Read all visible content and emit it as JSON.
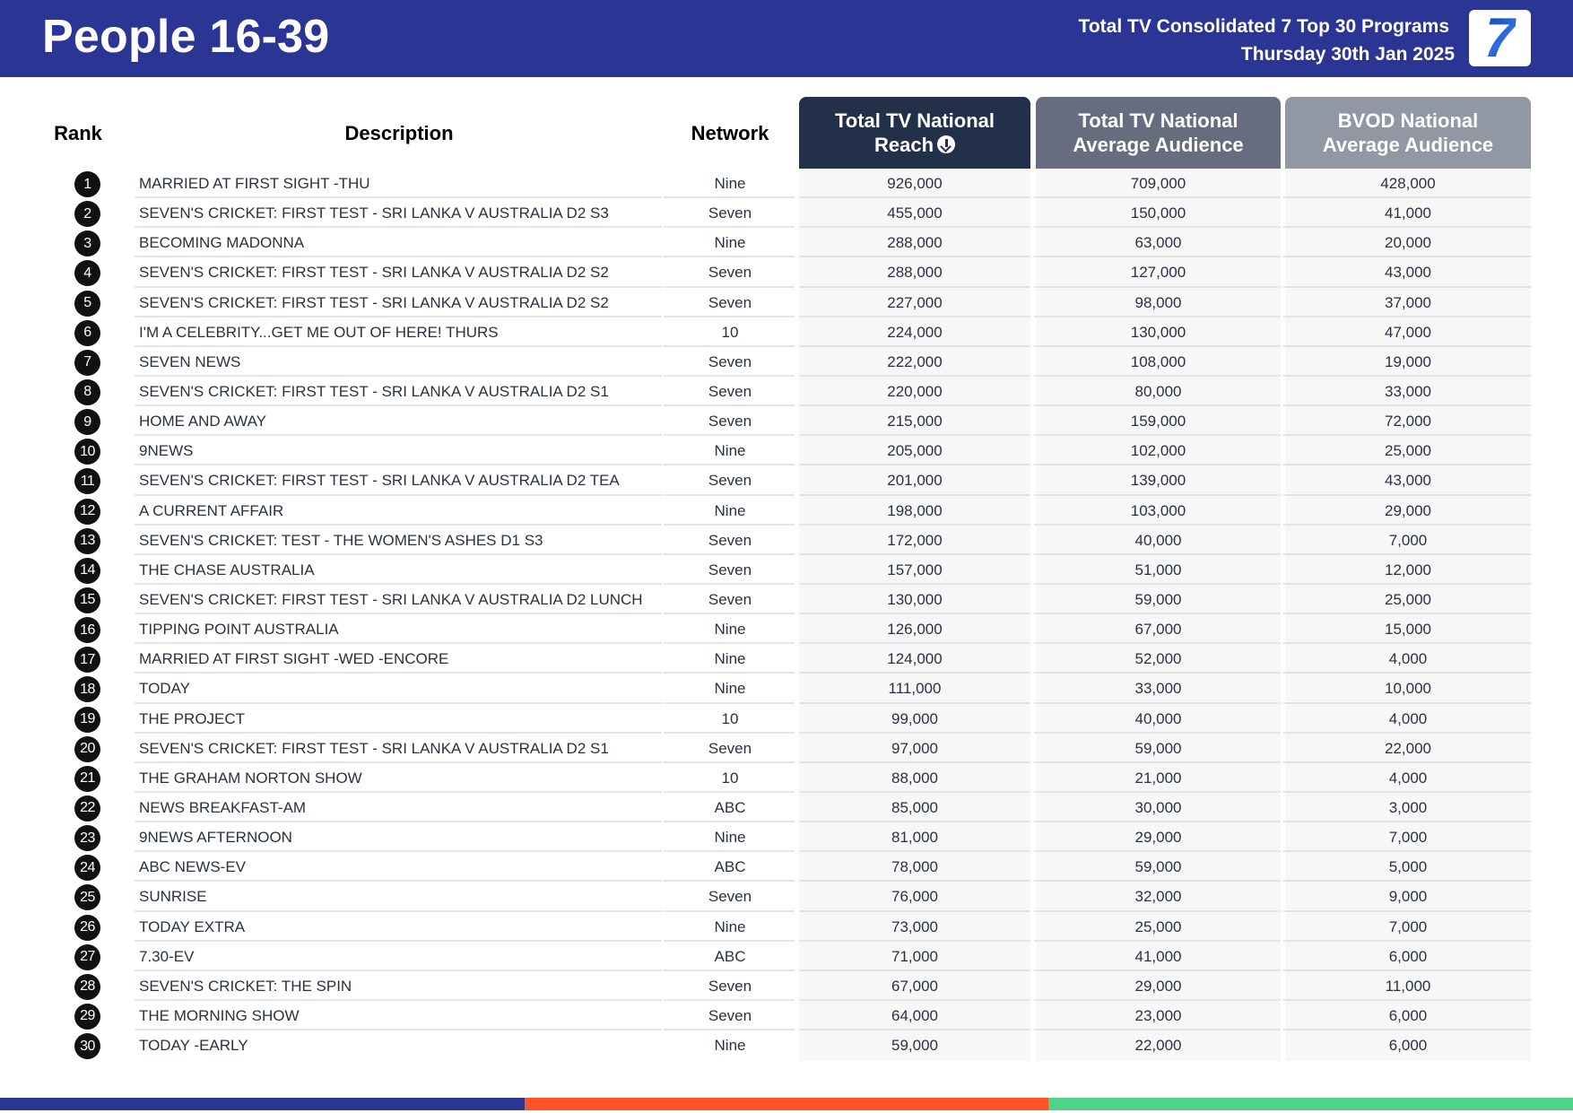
{
  "header": {
    "title": "People 16-39",
    "subtitle_line1": "Total TV Consolidated 7 Top 30 Programs",
    "subtitle_line2": "Thursday 30th Jan 2025",
    "logo_text": "7",
    "background_color": "#2b3593"
  },
  "table": {
    "columns": {
      "rank": "Rank",
      "description": "Description",
      "network": "Network",
      "reach_line1": "Total TV National",
      "reach_line2": "Reach",
      "avg_line1": "Total TV National",
      "avg_line2": "Average Audience",
      "bvod_line1": "BVOD National",
      "bvod_line2": "Average Audience"
    },
    "sort_icon": "arrow-down-circle-icon",
    "rows": [
      {
        "rank": "1",
        "description": "MARRIED AT FIRST SIGHT -THU",
        "network": "Nine",
        "reach": "926,000",
        "avg": "709,000",
        "bvod": "428,000"
      },
      {
        "rank": "2",
        "description": "SEVEN'S CRICKET: FIRST TEST - SRI LANKA V AUSTRALIA D2 S3",
        "network": "Seven",
        "reach": "455,000",
        "avg": "150,000",
        "bvod": "41,000"
      },
      {
        "rank": "3",
        "description": "BECOMING MADONNA",
        "network": "Nine",
        "reach": "288,000",
        "avg": "63,000",
        "bvod": "20,000"
      },
      {
        "rank": "4",
        "description": "SEVEN'S CRICKET: FIRST TEST - SRI LANKA V AUSTRALIA D2 S2",
        "network": "Seven",
        "reach": "288,000",
        "avg": "127,000",
        "bvod": "43,000"
      },
      {
        "rank": "5",
        "description": "SEVEN'S CRICKET: FIRST TEST - SRI LANKA V AUSTRALIA D2 S2",
        "network": "Seven",
        "reach": "227,000",
        "avg": "98,000",
        "bvod": "37,000"
      },
      {
        "rank": "6",
        "description": "I'M A CELEBRITY...GET ME OUT OF HERE! THURS",
        "network": "10",
        "reach": "224,000",
        "avg": "130,000",
        "bvod": "47,000"
      },
      {
        "rank": "7",
        "description": "SEVEN NEWS",
        "network": "Seven",
        "reach": "222,000",
        "avg": "108,000",
        "bvod": "19,000"
      },
      {
        "rank": "8",
        "description": "SEVEN'S CRICKET: FIRST TEST - SRI LANKA V AUSTRALIA D2 S1",
        "network": "Seven",
        "reach": "220,000",
        "avg": "80,000",
        "bvod": "33,000"
      },
      {
        "rank": "9",
        "description": "HOME AND AWAY",
        "network": "Seven",
        "reach": "215,000",
        "avg": "159,000",
        "bvod": "72,000"
      },
      {
        "rank": "10",
        "description": "9NEWS",
        "network": "Nine",
        "reach": "205,000",
        "avg": "102,000",
        "bvod": "25,000"
      },
      {
        "rank": "11",
        "description": "SEVEN'S CRICKET: FIRST TEST - SRI LANKA V AUSTRALIA D2 TEA",
        "network": "Seven",
        "reach": "201,000",
        "avg": "139,000",
        "bvod": "43,000"
      },
      {
        "rank": "12",
        "description": "A CURRENT AFFAIR",
        "network": "Nine",
        "reach": "198,000",
        "avg": "103,000",
        "bvod": "29,000"
      },
      {
        "rank": "13",
        "description": "SEVEN'S CRICKET: TEST - THE WOMEN'S ASHES D1 S3",
        "network": "Seven",
        "reach": "172,000",
        "avg": "40,000",
        "bvod": "7,000"
      },
      {
        "rank": "14",
        "description": "THE CHASE AUSTRALIA",
        "network": "Seven",
        "reach": "157,000",
        "avg": "51,000",
        "bvod": "12,000"
      },
      {
        "rank": "15",
        "description": "SEVEN'S CRICKET: FIRST TEST - SRI LANKA V AUSTRALIA D2 LUNCH",
        "network": "Seven",
        "reach": "130,000",
        "avg": "59,000",
        "bvod": "25,000"
      },
      {
        "rank": "16",
        "description": "TIPPING POINT AUSTRALIA",
        "network": "Nine",
        "reach": "126,000",
        "avg": "67,000",
        "bvod": "15,000"
      },
      {
        "rank": "17",
        "description": "MARRIED AT FIRST SIGHT -WED -ENCORE",
        "network": "Nine",
        "reach": "124,000",
        "avg": "52,000",
        "bvod": "4,000"
      },
      {
        "rank": "18",
        "description": "TODAY",
        "network": "Nine",
        "reach": "111,000",
        "avg": "33,000",
        "bvod": "10,000"
      },
      {
        "rank": "19",
        "description": "THE PROJECT",
        "network": "10",
        "reach": "99,000",
        "avg": "40,000",
        "bvod": "4,000"
      },
      {
        "rank": "20",
        "description": "SEVEN'S CRICKET: FIRST TEST - SRI LANKA V AUSTRALIA D2 S1",
        "network": "Seven",
        "reach": "97,000",
        "avg": "59,000",
        "bvod": "22,000"
      },
      {
        "rank": "21",
        "description": "THE GRAHAM NORTON SHOW",
        "network": "10",
        "reach": "88,000",
        "avg": "21,000",
        "bvod": "4,000"
      },
      {
        "rank": "22",
        "description": "NEWS BREAKFAST-AM",
        "network": "ABC",
        "reach": "85,000",
        "avg": "30,000",
        "bvod": "3,000"
      },
      {
        "rank": "23",
        "description": "9NEWS AFTERNOON",
        "network": "Nine",
        "reach": "81,000",
        "avg": "29,000",
        "bvod": "7,000"
      },
      {
        "rank": "24",
        "description": "ABC NEWS-EV",
        "network": "ABC",
        "reach": "78,000",
        "avg": "59,000",
        "bvod": "5,000"
      },
      {
        "rank": "25",
        "description": "SUNRISE",
        "network": "Seven",
        "reach": "76,000",
        "avg": "32,000",
        "bvod": "9,000"
      },
      {
        "rank": "26",
        "description": "TODAY EXTRA",
        "network": "Nine",
        "reach": "73,000",
        "avg": "25,000",
        "bvod": "7,000"
      },
      {
        "rank": "27",
        "description": "7.30-EV",
        "network": "ABC",
        "reach": "71,000",
        "avg": "41,000",
        "bvod": "6,000"
      },
      {
        "rank": "28",
        "description": "SEVEN'S CRICKET: THE SPIN",
        "network": "Seven",
        "reach": "67,000",
        "avg": "29,000",
        "bvod": "11,000"
      },
      {
        "rank": "29",
        "description": "THE MORNING SHOW",
        "network": "Seven",
        "reach": "64,000",
        "avg": "23,000",
        "bvod": "6,000"
      },
      {
        "rank": "30",
        "description": "TODAY -EARLY",
        "network": "Nine",
        "reach": "59,000",
        "avg": "22,000",
        "bvod": "6,000"
      }
    ]
  },
  "colors": {
    "header_bg": "#2b3593",
    "reach_header": "#23304a",
    "avg_header": "#656d7f",
    "bvod_header": "#9197a3",
    "footer_stripes": [
      "#2b3593",
      "#ff5426",
      "#50d289"
    ]
  }
}
